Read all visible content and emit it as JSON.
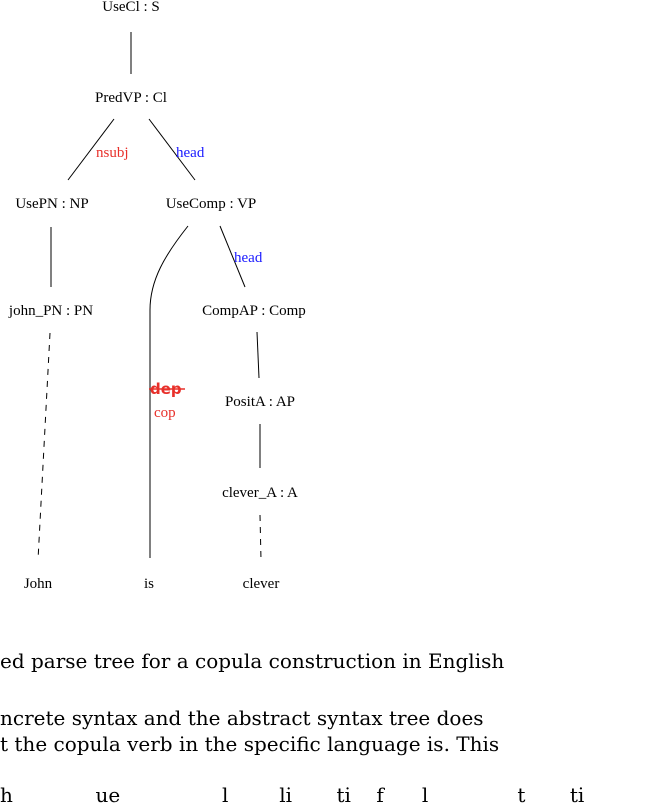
{
  "tree": {
    "nodes": {
      "usecl": "UseCl : S",
      "predvp": "PredVP : Cl",
      "usepn": "UsePN : NP",
      "usecomp": "UseComp : VP",
      "john_pn": "john_PN : PN",
      "compap": "CompAP : Comp",
      "posita": "PositA : AP",
      "clever_a": "clever_A : A"
    },
    "words": {
      "john": "John",
      "is": "is",
      "clever": "clever"
    },
    "labels": {
      "nsubj": "nsubj",
      "head_1": "head",
      "head_2": "head",
      "dep_struck": "dep",
      "cop": "cop"
    },
    "colors": {
      "nsubj": "#e8302a",
      "head": "#1a1aff",
      "dep": "#e8302a",
      "cop": "#e8302a"
    }
  },
  "caption": "ed parse tree for a copula construction in English",
  "text_lines": [
    "ncrete syntax and the abstract syntax tree does",
    "t the copula verb in the specific language is. This",
    "h             ue                l        li       ti    f      l              t       ti"
  ]
}
